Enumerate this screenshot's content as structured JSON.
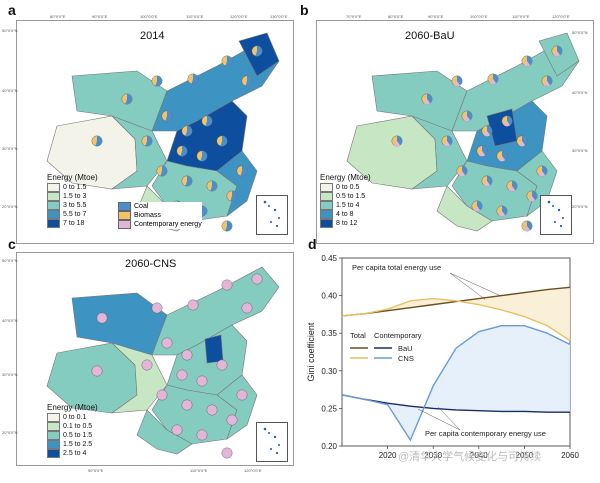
{
  "panels": {
    "a": {
      "label": "a",
      "title": "2014"
    },
    "b": {
      "label": "b",
      "title": "2060-BaU"
    },
    "c": {
      "label": "c",
      "title": "2060-CNS"
    },
    "d": {
      "label": "d"
    }
  },
  "map_ticks": {
    "top": [
      "70°0'0\"E",
      "80°0'0\"E",
      "90°0'0\"E",
      "100°0'0\"E",
      "110°0'0\"E",
      "120°0'0\"E",
      "130°0'0\"E"
    ],
    "left": [
      "50°0'0\"N",
      "40°0'0\"N",
      "30°0'0\"N",
      "20°0'0\"N"
    ],
    "bottom_c": [
      "90°0'0\"E",
      "110°0'0\"E",
      "120°0'0\"E"
    ]
  },
  "legends": {
    "a": {
      "title": "Energy (Mtoe)",
      "items": [
        {
          "label": "0 to 1.5",
          "color": "#f3f3ea"
        },
        {
          "label": "1.5 to 3",
          "color": "#c7e6c4"
        },
        {
          "label": "3 to 5.5",
          "color": "#84ccc0"
        },
        {
          "label": "5.5 to 7",
          "color": "#3d93c2"
        },
        {
          "label": "7 to 18",
          "color": "#0e4e9e"
        }
      ]
    },
    "b": {
      "title": "Energy (Mtoe)",
      "items": [
        {
          "label": "0 to 0.5",
          "color": "#f3f3ea"
        },
        {
          "label": "0.5 to 1.5",
          "color": "#c7e6c4"
        },
        {
          "label": "1.5 to 4",
          "color": "#84ccc0"
        },
        {
          "label": "4 to 8",
          "color": "#3d93c2"
        },
        {
          "label": "8 to 12",
          "color": "#0e4e9e"
        }
      ]
    },
    "c": {
      "title": "Energy (Mtoe)",
      "items": [
        {
          "label": "0 to 0.1",
          "color": "#f3f3ea"
        },
        {
          "label": "0.1 to 0.5",
          "color": "#c7e6c4"
        },
        {
          "label": "0.5 to 1.5",
          "color": "#84ccc0"
        },
        {
          "label": "1.5 to 2.5",
          "color": "#3d93c2"
        },
        {
          "label": "2.5 to 4",
          "color": "#0e4e9e"
        }
      ]
    }
  },
  "fuel_legend": [
    {
      "label": "Coal",
      "color": "#4b8ec9"
    },
    {
      "label": "Biomass",
      "color": "#f2c36b"
    },
    {
      "label": "Contemporary energy",
      "color": "#e3b6d9"
    }
  ],
  "chart_data": {
    "type": "line",
    "ylabel": "Gini coefficient",
    "xlabel": "",
    "xlim": [
      2010,
      2060
    ],
    "ylim": [
      0.2,
      0.45
    ],
    "yticks": [
      "0.20",
      "0.25",
      "0.30",
      "0.35",
      "0.40",
      "0.45"
    ],
    "xticks": [
      "2020",
      "2030",
      "2040",
      "2050",
      "2060"
    ],
    "legend": {
      "col1": "Total",
      "col2": "Contemporary",
      "bau": "BaU",
      "cns": "CNS"
    },
    "annotations": {
      "total": "Per capita total energy use",
      "contemporary": "Per capita contemporary energy use"
    },
    "series": [
      {
        "name": "BaU",
        "group": "Total",
        "color": "#6b4f1c",
        "x": [
          2010,
          2015,
          2020,
          2025,
          2030,
          2035,
          2040,
          2045,
          2050,
          2055,
          2060
        ],
        "y": [
          0.373,
          0.376,
          0.38,
          0.384,
          0.388,
          0.392,
          0.396,
          0.4,
          0.404,
          0.408,
          0.411
        ]
      },
      {
        "name": "CNS",
        "group": "Total",
        "color": "#e9c066",
        "x": [
          2010,
          2015,
          2020,
          2025,
          2030,
          2035,
          2040,
          2045,
          2050,
          2055,
          2060
        ],
        "y": [
          0.373,
          0.376,
          0.382,
          0.393,
          0.396,
          0.393,
          0.388,
          0.381,
          0.372,
          0.36,
          0.34
        ]
      },
      {
        "name": "BaU",
        "group": "Contemporary",
        "color": "#1a2b66",
        "x": [
          2010,
          2015,
          2020,
          2025,
          2030,
          2035,
          2040,
          2045,
          2050,
          2055,
          2060
        ],
        "y": [
          0.268,
          0.262,
          0.257,
          0.253,
          0.25,
          0.248,
          0.247,
          0.246,
          0.246,
          0.245,
          0.245
        ]
      },
      {
        "name": "CNS",
        "group": "Contemporary",
        "color": "#6a9bd6",
        "x": [
          2010,
          2015,
          2020,
          2025,
          2030,
          2035,
          2040,
          2045,
          2050,
          2055,
          2060
        ],
        "y": [
          0.268,
          0.262,
          0.255,
          0.208,
          0.28,
          0.33,
          0.352,
          0.36,
          0.36,
          0.35,
          0.335
        ]
      }
    ]
  },
  "watermark": "@清华大学气候变化与可持续"
}
